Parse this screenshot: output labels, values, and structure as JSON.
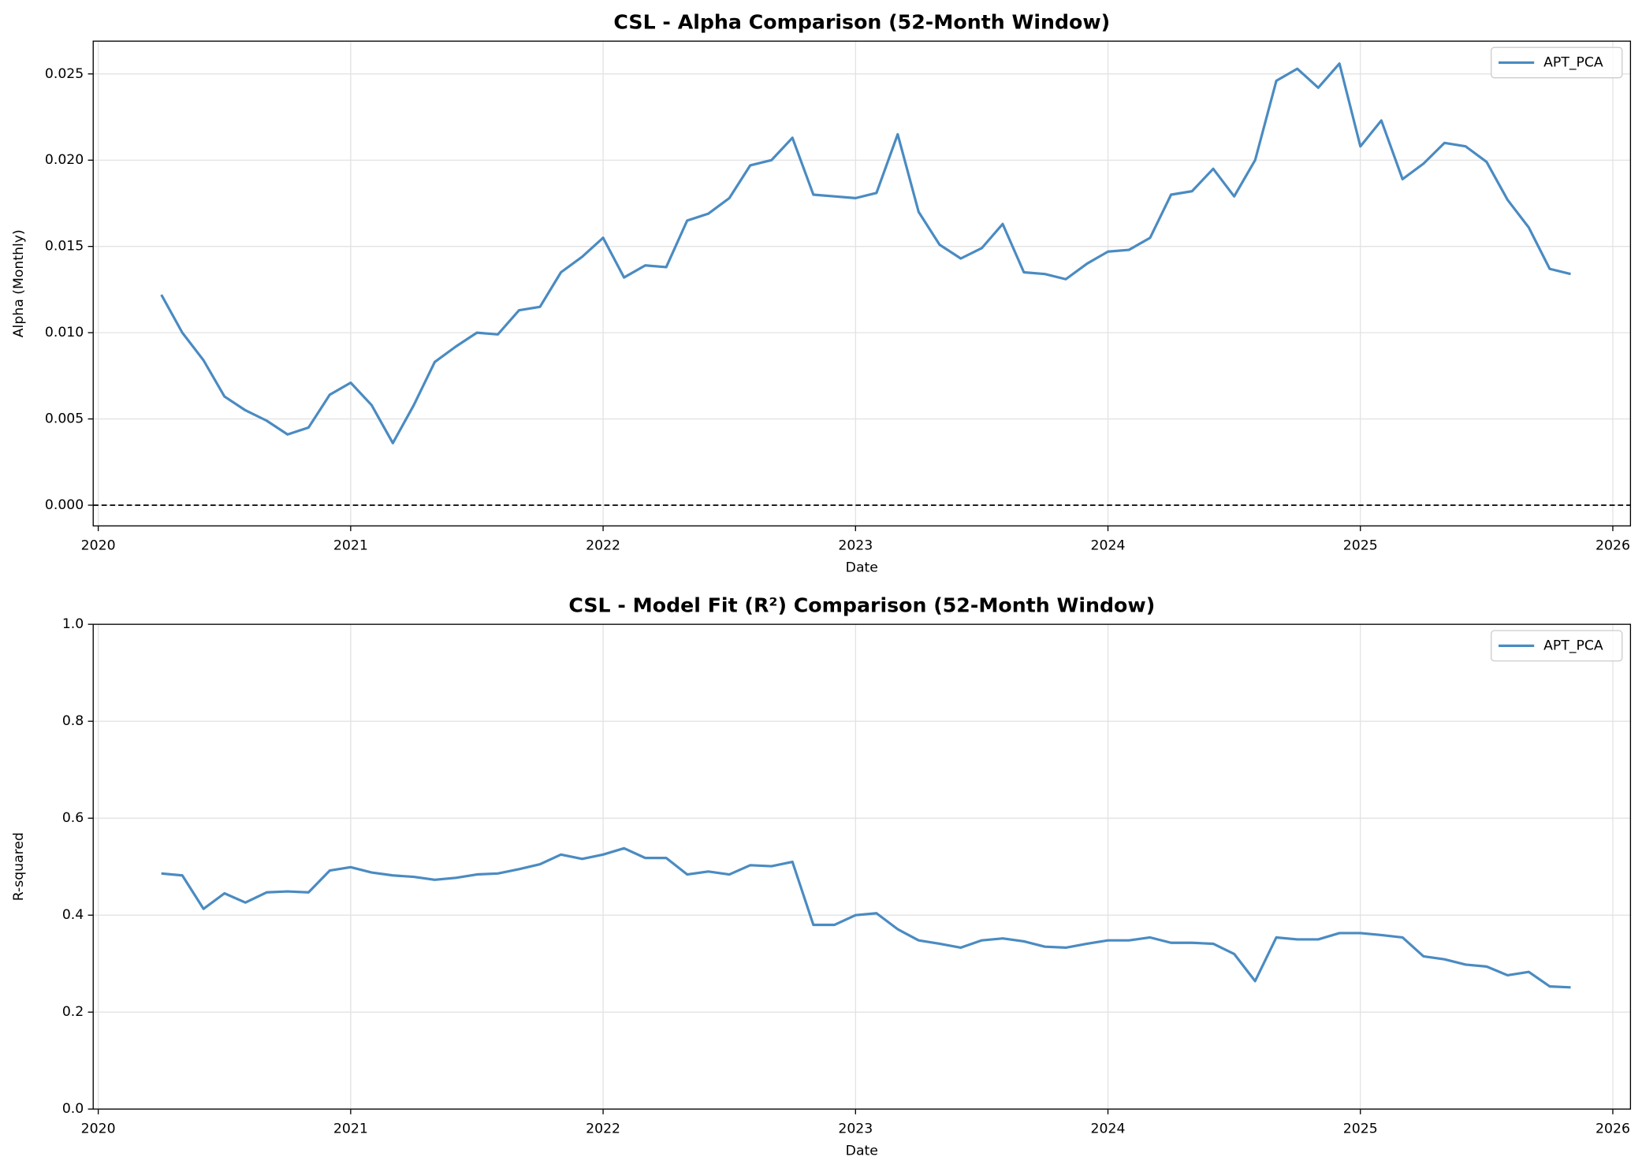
{
  "chart_data": [
    {
      "type": "line",
      "title": "CSL - Alpha Comparison (52-Month Window)",
      "x_label": "Date",
      "y_label": "Alpha (Monthly)",
      "x": [
        2020.25,
        2020.333,
        2020.417,
        2020.5,
        2020.583,
        2020.667,
        2020.75,
        2020.833,
        2020.917,
        2021,
        2021.083,
        2021.167,
        2021.25,
        2021.333,
        2021.417,
        2021.5,
        2021.583,
        2021.667,
        2021.75,
        2021.833,
        2021.917,
        2022,
        2022.083,
        2022.167,
        2022.25,
        2022.333,
        2022.417,
        2022.5,
        2022.583,
        2022.667,
        2022.75,
        2022.833,
        2022.917,
        2023,
        2023.083,
        2023.167,
        2023.25,
        2023.333,
        2023.417,
        2023.5,
        2023.583,
        2023.667,
        2023.75,
        2023.833,
        2023.917,
        2024,
        2024.083,
        2024.167,
        2024.25,
        2024.333,
        2024.417,
        2024.5,
        2024.583,
        2024.667,
        2024.75,
        2024.833,
        2024.917,
        2025,
        2025.083,
        2025.167,
        2025.25,
        2025.333,
        2025.417,
        2025.5,
        2025.583,
        2025.667,
        2025.75,
        2025.833
      ],
      "series": [
        {
          "name": "APT_PCA",
          "color": "#4a8bc2",
          "values": [
            0.0122,
            0.01,
            0.0084,
            0.0063,
            0.0055,
            0.0049,
            0.0041,
            0.0045,
            0.0064,
            0.0071,
            0.0058,
            0.0036,
            0.0058,
            0.0083,
            0.0092,
            0.01,
            0.0099,
            0.0113,
            0.0115,
            0.0135,
            0.0144,
            0.0155,
            0.0132,
            0.0139,
            0.0138,
            0.0165,
            0.0169,
            0.0178,
            0.0197,
            0.02,
            0.0213,
            0.018,
            0.0179,
            0.0178,
            0.0181,
            0.0215,
            0.017,
            0.0151,
            0.0143,
            0.0149,
            0.0163,
            0.0135,
            0.0134,
            0.0131,
            0.014,
            0.0147,
            0.0148,
            0.0155,
            0.018,
            0.0182,
            0.0195,
            0.0179,
            0.02,
            0.0246,
            0.0253,
            0.0242,
            0.0256,
            0.0208,
            0.0223,
            0.0189,
            0.0198,
            0.021,
            0.0208,
            0.0199,
            0.0177,
            0.0161,
            0.0137,
            0.0134
          ]
        }
      ],
      "xlim": [
        2019.98,
        2026.07
      ],
      "xticks": [
        2020,
        2021,
        2022,
        2023,
        2024,
        2025,
        2026
      ],
      "ylim": [
        -0.0012,
        0.0269
      ],
      "yticks": [
        {
          "value": 0,
          "label": "0.000"
        },
        {
          "value": 0.005,
          "label": "0.005"
        },
        {
          "value": 0.01,
          "label": "0.010"
        },
        {
          "value": 0.015,
          "label": "0.015"
        },
        {
          "value": 0.02,
          "label": "0.020"
        },
        {
          "value": 0.025,
          "label": "0.025"
        }
      ],
      "hline": 0,
      "grid": true,
      "legend": "upper right"
    },
    {
      "type": "line",
      "title": "CSL - Model Fit (R²) Comparison (52-Month Window)",
      "x_label": "Date",
      "y_label": "R-squared",
      "x": [
        2020.25,
        2020.333,
        2020.417,
        2020.5,
        2020.583,
        2020.667,
        2020.75,
        2020.833,
        2020.917,
        2021,
        2021.083,
        2021.167,
        2021.25,
        2021.333,
        2021.417,
        2021.5,
        2021.583,
        2021.667,
        2021.75,
        2021.833,
        2021.917,
        2022,
        2022.083,
        2022.167,
        2022.25,
        2022.333,
        2022.417,
        2022.5,
        2022.583,
        2022.667,
        2022.75,
        2022.833,
        2022.917,
        2023,
        2023.083,
        2023.167,
        2023.25,
        2023.333,
        2023.417,
        2023.5,
        2023.583,
        2023.667,
        2023.75,
        2023.833,
        2023.917,
        2024,
        2024.083,
        2024.167,
        2024.25,
        2024.333,
        2024.417,
        2024.5,
        2024.583,
        2024.667,
        2024.75,
        2024.833,
        2024.917,
        2025,
        2025.083,
        2025.167,
        2025.25,
        2025.333,
        2025.417,
        2025.5,
        2025.583,
        2025.667,
        2025.75,
        2025.833
      ],
      "series": [
        {
          "name": "APT_PCA",
          "color": "#4a8bc2",
          "values": [
            0.486,
            0.482,
            0.413,
            0.445,
            0.426,
            0.447,
            0.449,
            0.447,
            0.492,
            0.499,
            0.488,
            0.482,
            0.479,
            0.473,
            0.477,
            0.484,
            0.486,
            0.495,
            0.505,
            0.525,
            0.516,
            0.525,
            0.538,
            0.518,
            0.518,
            0.484,
            0.49,
            0.484,
            0.503,
            0.501,
            0.51,
            0.38,
            0.38,
            0.4,
            0.404,
            0.371,
            0.348,
            0.341,
            0.333,
            0.348,
            0.352,
            0.346,
            0.335,
            0.333,
            0.341,
            0.348,
            0.348,
            0.354,
            0.343,
            0.343,
            0.341,
            0.32,
            0.264,
            0.354,
            0.35,
            0.35,
            0.363,
            0.363,
            0.359,
            0.354,
            0.315,
            0.309,
            0.298,
            0.294,
            0.276,
            0.283,
            0.253,
            0.251
          ]
        }
      ],
      "xlim": [
        2019.98,
        2026.07
      ],
      "xticks": [
        2020,
        2021,
        2022,
        2023,
        2024,
        2025,
        2026
      ],
      "ylim": [
        0,
        1
      ],
      "yticks": [
        {
          "value": 0,
          "label": "0.0"
        },
        0.2,
        0.4,
        0.6,
        0.8,
        {
          "value": 1,
          "label": "1.0"
        }
      ],
      "grid": true,
      "legend": "upper right"
    }
  ]
}
